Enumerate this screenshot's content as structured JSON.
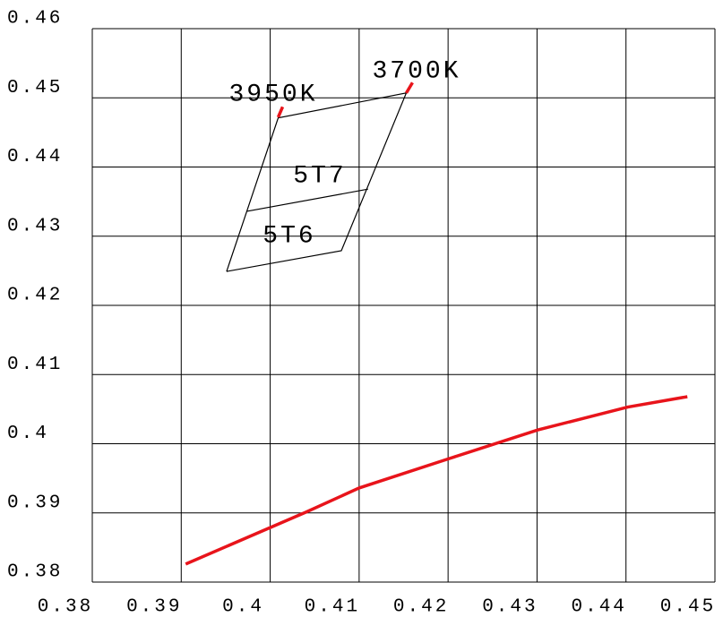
{
  "chart_data": {
    "type": "line",
    "xlim": [
      0.38,
      0.45
    ],
    "ylim": [
      0.38,
      0.46
    ],
    "xticks": [
      0.38,
      0.39,
      0.4,
      0.41,
      0.42,
      0.43,
      0.44,
      0.45
    ],
    "yticks": [
      0.38,
      0.39,
      0.4,
      0.41,
      0.42,
      0.43,
      0.44,
      0.45,
      0.46
    ],
    "grid": true,
    "series": [
      {
        "color": "#e8141b",
        "x": [
          0.3905,
          0.404,
          0.41,
          0.42,
          0.4301,
          0.4402,
          0.4469
        ],
        "values": [
          0.3826,
          0.3901,
          0.3936,
          0.3978,
          0.402,
          0.4053,
          0.4068
        ]
      },
      {
        "color": "#000000",
        "x": [
          0.3951,
          0.4009,
          0.4153,
          0.408,
          0.3951
        ],
        "values": [
          0.4249,
          0.4471,
          0.4507,
          0.4279,
          0.4249
        ]
      },
      {
        "color": "#000000",
        "x": [
          0.3974,
          0.411
        ],
        "values": [
          0.4336,
          0.4368
        ]
      },
      {
        "color": "#e8141b",
        "x": [
          0.4009,
          0.4014
        ],
        "values": [
          0.4472,
          0.4487
        ]
      },
      {
        "color": "#e8141b",
        "x": [
          0.4153,
          0.416
        ],
        "values": [
          0.4507,
          0.4522
        ]
      }
    ],
    "annotations": [
      "3950K",
      "3700K",
      "5T7",
      "5T6"
    ]
  }
}
